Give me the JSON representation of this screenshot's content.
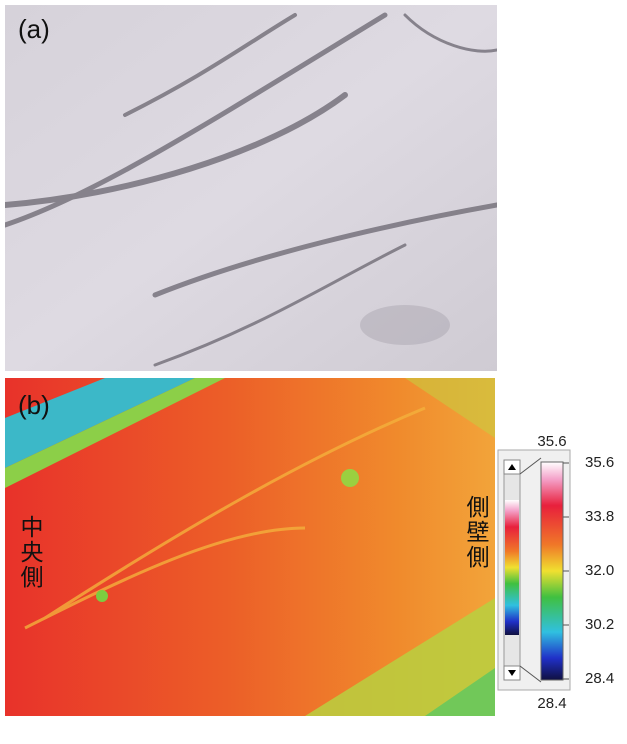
{
  "panels": [
    {
      "label": "(a)"
    },
    {
      "label": "(b)",
      "left_label": "中央側",
      "right_label": "側壁側"
    }
  ],
  "colorbar": {
    "range": [
      28.4,
      35.6
    ],
    "ticks": [
      35.6,
      33.8,
      {
        "value": 32,
        "label": "32.0"
      },
      30.2,
      28.4
    ]
  }
}
